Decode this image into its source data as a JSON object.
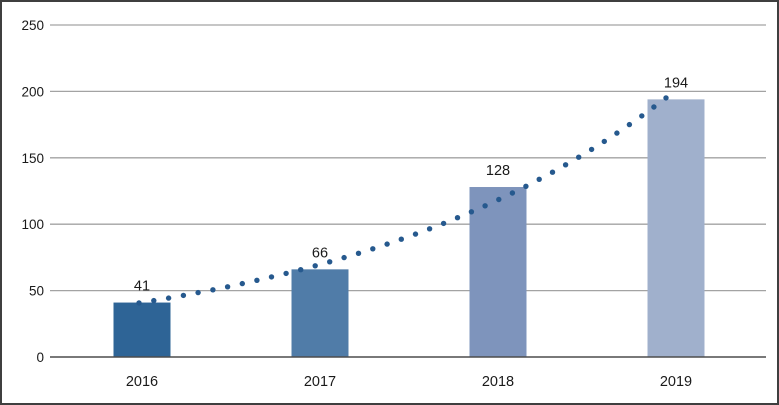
{
  "chart_data": {
    "type": "bar",
    "title": "",
    "xlabel": "",
    "ylabel": "",
    "categories": [
      "2016",
      "2017",
      "2018",
      "2019"
    ],
    "values": [
      41,
      66,
      128,
      194
    ],
    "data_labels": [
      "41",
      "66",
      "128",
      "194"
    ],
    "bar_colors": [
      "#2e6496",
      "#507ca8",
      "#7e94bc",
      "#a0b0cc"
    ],
    "yticks": [
      0,
      50,
      100,
      150,
      200,
      250
    ],
    "ytick_labels": [
      "0",
      "50",
      "100",
      "150",
      "200",
      "250"
    ],
    "ylim": [
      0,
      250
    ],
    "grid": true,
    "legend": "none",
    "trend": {
      "style": "dotted-curve",
      "shape": "exponential",
      "start_value": 41,
      "end_value": 201,
      "dot_color": "#26598e"
    },
    "colors": {
      "gridline": "#a3a3a3",
      "axis_line": "#4d4d4d",
      "text": "#1a1a1a",
      "frame_border": "#3f3f3f",
      "background": "#ffffff"
    }
  }
}
